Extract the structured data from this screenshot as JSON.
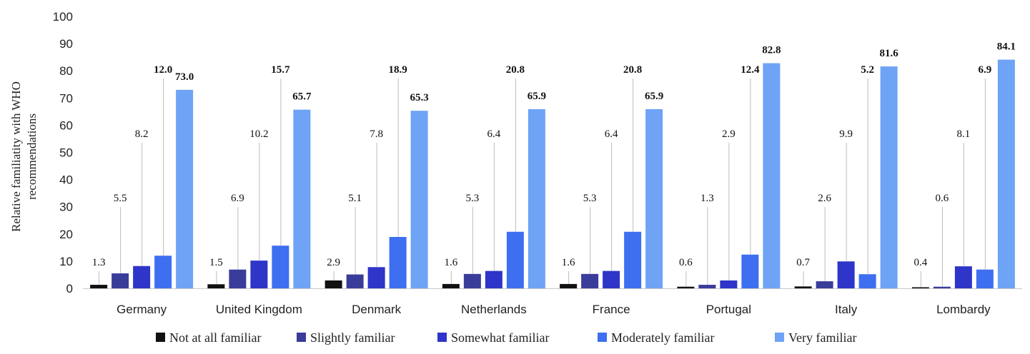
{
  "chart_data": {
    "type": "bar",
    "title": "",
    "xlabel": "",
    "ylabel_lines": [
      "Relative familiatity with WHO",
      "recommendations"
    ],
    "ylim": [
      0,
      100
    ],
    "yticks": [
      0,
      10,
      20,
      30,
      40,
      50,
      60,
      70,
      80,
      90,
      100
    ],
    "grid": false,
    "legend_position": "bottom",
    "categories": [
      "Germany",
      "United Kingdom",
      "Denmark",
      "Netherlands",
      "France",
      "Portugal",
      "Italy",
      "Lombardy"
    ],
    "series": [
      {
        "name": "Not at all familiar",
        "color": "#111111",
        "values": [
          1.3,
          1.5,
          2.9,
          1.6,
          1.6,
          0.6,
          0.7,
          0.4
        ],
        "labels": [
          "1.3",
          "1.5",
          "2.9",
          "1.6",
          "1.6",
          "0.6",
          "0.7",
          "0.4"
        ]
      },
      {
        "name": "Slightly familiar",
        "color": "#3a3c9a",
        "values": [
          5.5,
          6.9,
          5.1,
          5.3,
          5.3,
          1.3,
          2.6,
          0.6
        ],
        "labels": [
          "5.5",
          "6.9",
          "5.1",
          "5.3",
          "5.3",
          "1.3",
          "2.6",
          "0.6"
        ]
      },
      {
        "name": "Somewhat familiar",
        "color": "#2e35c8",
        "values": [
          8.2,
          10.2,
          7.8,
          6.4,
          6.4,
          2.9,
          9.9,
          8.1
        ],
        "labels": [
          "8.2",
          "10.2",
          "7.8",
          "6.4",
          "6.4",
          "2.9",
          "9.9",
          "8.1"
        ]
      },
      {
        "name": "Moderately familiar",
        "color": "#3d6ff0",
        "values": [
          12.0,
          15.7,
          18.9,
          20.8,
          20.8,
          12.4,
          5.2,
          6.9
        ],
        "labels": [
          "12.0",
          "15.7",
          "18.9",
          "20.8",
          "20.8",
          "12.4",
          "5.2",
          "6.9"
        ]
      },
      {
        "name": "Very familiar",
        "color": "#6ea3f5",
        "values": [
          73.0,
          65.7,
          65.3,
          65.9,
          65.9,
          82.8,
          81.6,
          84.1
        ],
        "labels": [
          "73.0",
          "65.7",
          "65.3",
          "65.9",
          "65.9",
          "82.8",
          "81.6",
          "84.1"
        ]
      }
    ]
  }
}
